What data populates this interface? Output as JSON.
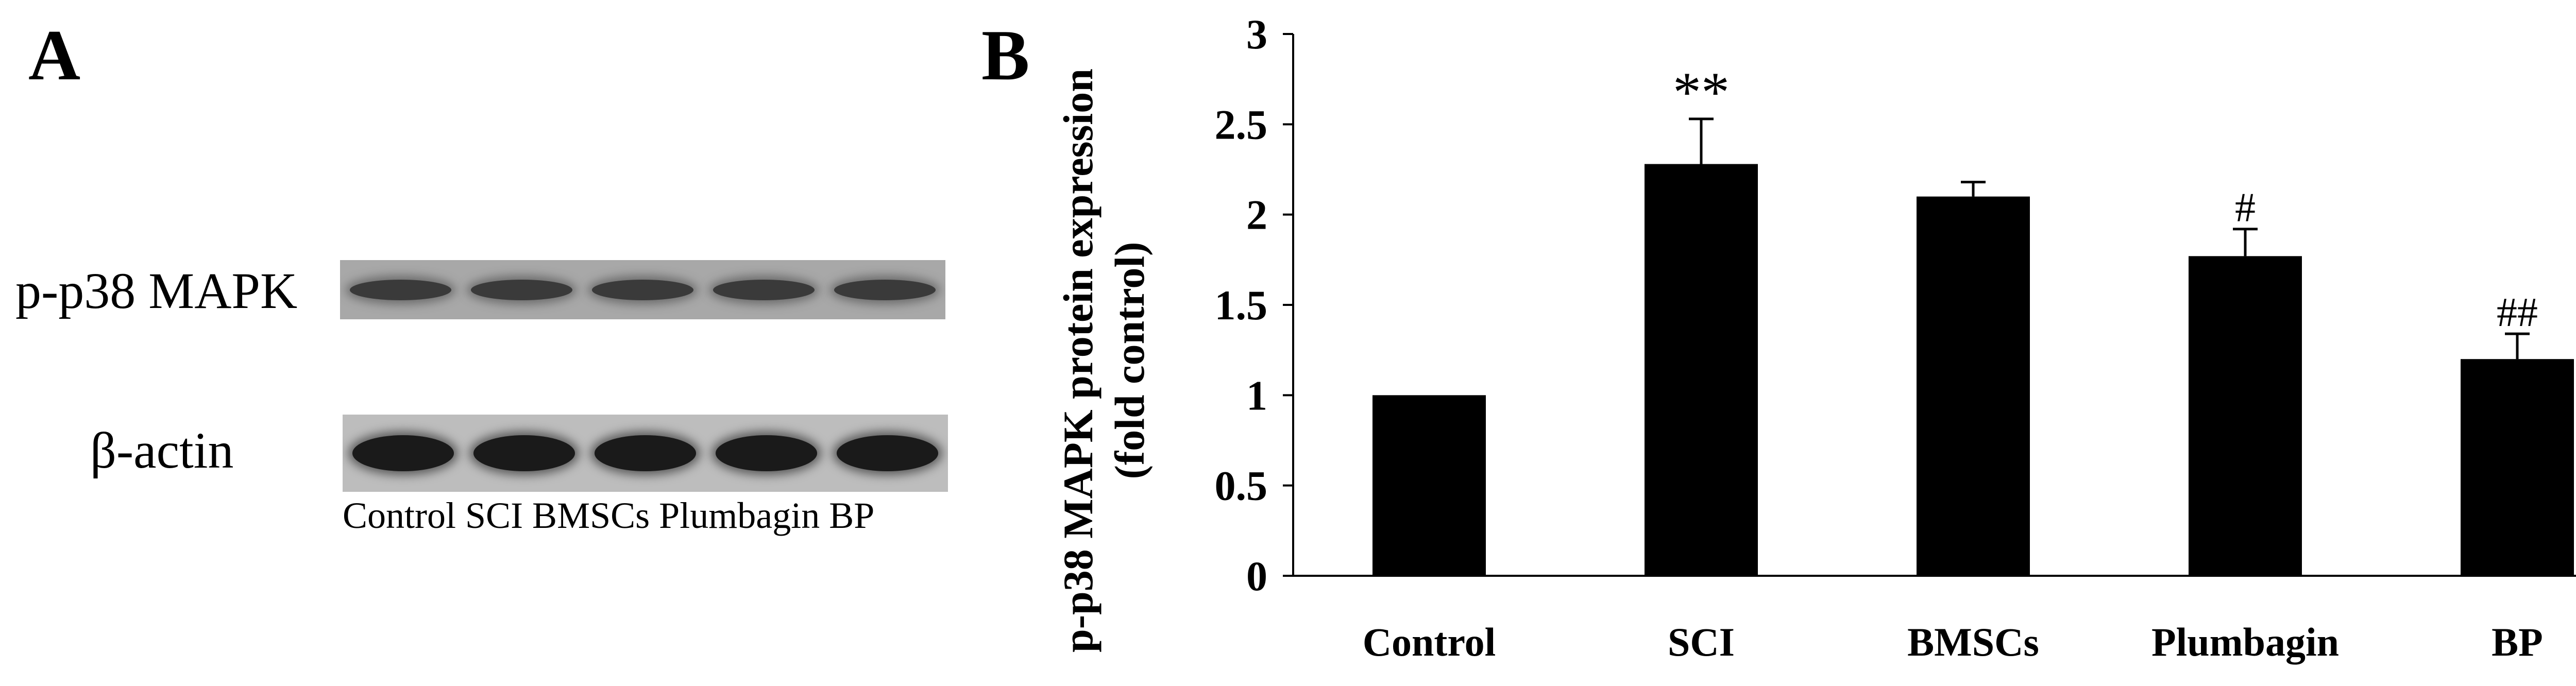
{
  "panel_a": {
    "letter": "A",
    "rows": [
      {
        "label": "p-p38 MAPK"
      },
      {
        "label": "β-actin"
      }
    ],
    "lane_labels": "Control SCI BMSCs Plumbagin BP"
  },
  "panel_b": {
    "letter": "B"
  },
  "chart_data": {
    "type": "bar",
    "title": "",
    "xlabel": "",
    "ylabel_line1": "p-p38 MAPK protein expression",
    "ylabel_line2": "(fold control)",
    "categories": [
      "Control",
      "SCI",
      "BMSCs",
      "Plumbagin",
      "BP"
    ],
    "values": [
      1.0,
      2.28,
      2.1,
      1.77,
      1.2
    ],
    "errors": [
      0.0,
      0.25,
      0.08,
      0.15,
      0.14
    ],
    "annotations": [
      "",
      "**",
      "",
      "#",
      "##"
    ],
    "ylim": [
      0,
      3
    ],
    "yticks": [
      0,
      0.5,
      1,
      1.5,
      2,
      2.5,
      3
    ],
    "ytick_labels": [
      "0",
      "0.5",
      "1",
      "1.5",
      "2",
      "2.5",
      "3"
    ],
    "bar_color": "#000000",
    "grid": false
  }
}
